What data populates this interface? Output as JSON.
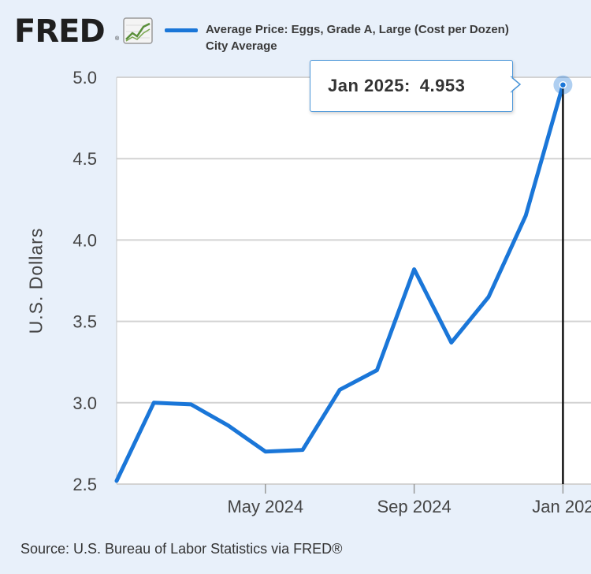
{
  "header": {
    "logo_text": "FRED",
    "logo_reg": "®",
    "legend_line1": "Average Price: Eggs, Grade A, Large (Cost per Dozen)",
    "legend_line2": "City Average",
    "series_color": "#1a76d8"
  },
  "tooltip": {
    "label": "Jan 2025:",
    "value": "4.953"
  },
  "footer": {
    "source": "Source: U.S. Bureau of Labor Statistics via FRED®"
  },
  "chart_data": {
    "type": "line",
    "ylabel": "U.S. Dollars",
    "xlabel": "",
    "ylim": [
      2.5,
      5.0
    ],
    "y_ticks": [
      "5.0",
      "4.5",
      "4.0",
      "3.5",
      "3.0",
      "2.5"
    ],
    "x_ticks": [
      "May 2024",
      "Sep 2024",
      "Jan 202"
    ],
    "grid": true,
    "legend": "top",
    "x": [
      "2024-01",
      "2024-02",
      "2024-03",
      "2024-04",
      "2024-05",
      "2024-06",
      "2024-07",
      "2024-08",
      "2024-09",
      "2024-10",
      "2024-11",
      "2024-12",
      "2025-01"
    ],
    "series": [
      {
        "name": "Average Price: Eggs, Grade A, Large (Cost per Dozen) City Average",
        "values": [
          2.52,
          3.0,
          2.99,
          2.86,
          2.7,
          2.71,
          3.08,
          3.2,
          3.82,
          3.37,
          3.65,
          4.15,
          4.953
        ]
      }
    ],
    "highlight": {
      "x": "2025-01",
      "y": 4.953
    }
  }
}
